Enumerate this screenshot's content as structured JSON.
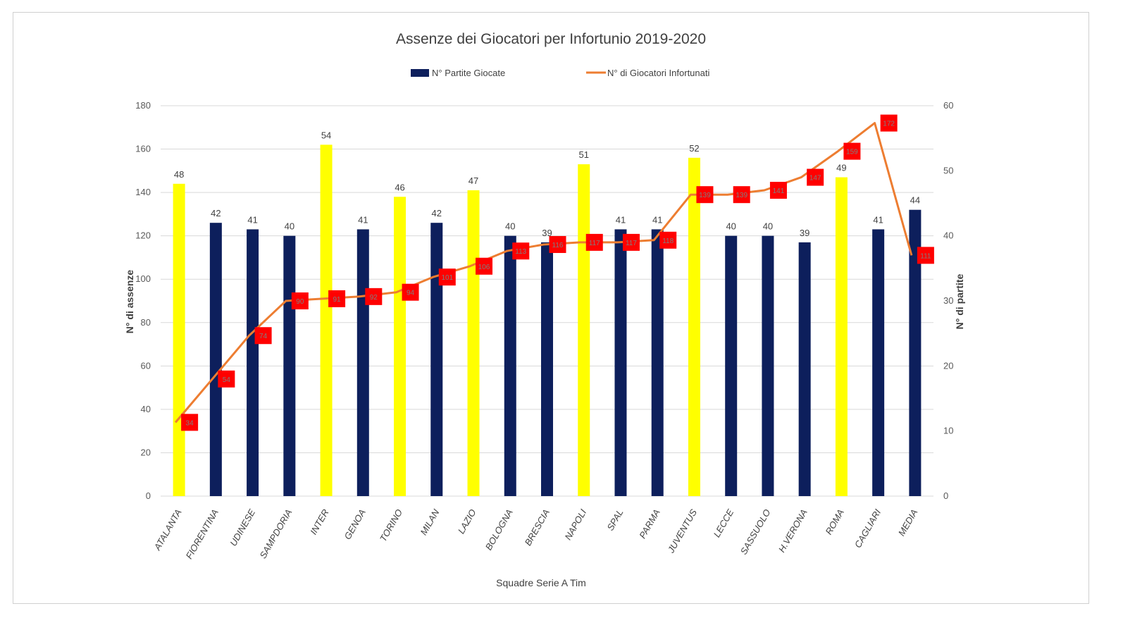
{
  "chart_data": {
    "type": "bar+line",
    "title": "Assenze dei Giocatori per Infortunio 2019-2020",
    "xlabel": "Squadre Serie A Tim",
    "ylabel_left": "N° di assenze",
    "ylabel_right": "N° di partite",
    "ylim_left": [
      0,
      180
    ],
    "yticks_left": [
      0,
      20,
      40,
      60,
      80,
      100,
      120,
      140,
      160,
      180
    ],
    "ylim_right": [
      0,
      60
    ],
    "yticks_right": [
      0,
      10,
      20,
      30,
      40,
      50,
      60
    ],
    "legend_position": "top-center",
    "grid": true,
    "categories": [
      "ATALANTA",
      "FIORENTINA",
      "UDINESE",
      "SAMPDORIA",
      "INTER",
      "GENOA",
      "TORINO",
      "MILAN",
      "LAZIO",
      "BOLOGNA",
      "BRESCIA",
      "NAPOLI",
      "SPAL",
      "PARMA",
      "JUVENTUS",
      "LECCE",
      "SASSUOLO",
      "H.VERONA",
      "ROMA",
      "CAGLIARI",
      "MEDIA"
    ],
    "series": [
      {
        "name": "N° Partite Giocate",
        "type": "bar",
        "axis": "right",
        "values": [
          48,
          42,
          41,
          40,
          54,
          41,
          46,
          42,
          47,
          40,
          39,
          51,
          41,
          41,
          52,
          40,
          40,
          39,
          49,
          41,
          44
        ],
        "highlight": [
          true,
          false,
          false,
          false,
          true,
          false,
          true,
          false,
          true,
          false,
          false,
          true,
          false,
          false,
          true,
          false,
          false,
          false,
          true,
          false,
          false
        ],
        "data_labels": [
          "48",
          "42",
          "41",
          "40",
          "54",
          "41",
          "46",
          "42",
          "47",
          "40",
          "39",
          "51",
          "41",
          "41",
          "52",
          "40",
          "40",
          "39",
          "49",
          "41",
          "44"
        ]
      },
      {
        "name": "N° di Giocatori Infortunati",
        "type": "line",
        "axis": "left",
        "values": [
          34,
          54,
          74,
          90,
          91,
          92,
          94,
          101,
          106,
          113,
          116,
          117,
          117,
          118,
          139,
          139,
          141,
          147,
          159,
          172,
          111
        ],
        "data_labels": [
          "34",
          "54",
          "74",
          "90",
          "91",
          "92",
          "94",
          "101",
          "106",
          "113",
          "116",
          "117",
          "117",
          "118",
          "139",
          "139",
          "141",
          "147",
          "159",
          "172",
          "111"
        ]
      }
    ],
    "colors": {
      "bar_default": "#0d1f5c",
      "bar_highlight": "#ffff00",
      "line": "#ed7d31",
      "marker": "#ff0000",
      "grid": "#d9d9d9"
    }
  }
}
